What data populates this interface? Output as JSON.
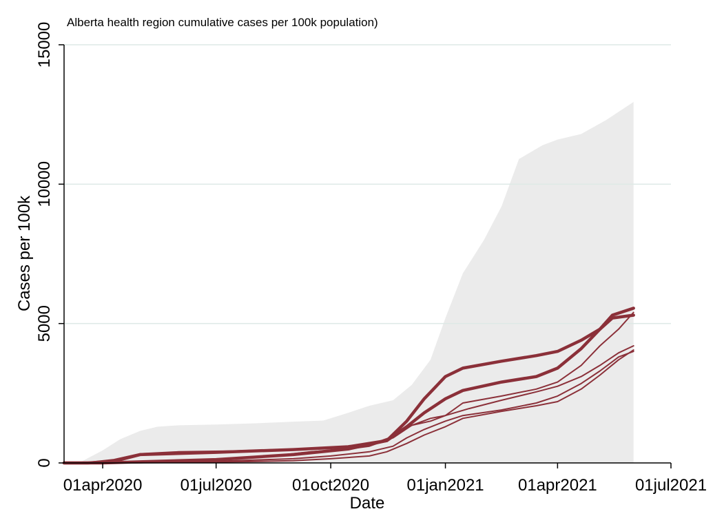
{
  "chart_data": {
    "type": "line",
    "title": "Alberta health region cumulative cases per 100k population)",
    "xlabel": "Date",
    "ylabel": "Cases per 100k",
    "x_ticks": [
      "01apr2020",
      "01jul2020",
      "01oct2020",
      "01jan2021",
      "01apr2021",
      "01jul2021"
    ],
    "y_ticks": [
      "0",
      "5000",
      "10000",
      "15000"
    ],
    "xlim": [
      "2020-03-01",
      "2021-07-01"
    ],
    "ylim": [
      0,
      15000
    ],
    "grid": "horizontal",
    "colors": {
      "series": "#8b3039",
      "background_bars": "#ebebeb",
      "grid": "#dde9e6"
    },
    "background_bars": {
      "x": [
        "2020-03-01",
        "2020-03-15",
        "2020-04-01",
        "2020-04-15",
        "2020-05-01",
        "2020-05-15",
        "2020-06-01",
        "2020-07-01",
        "2020-08-01",
        "2020-09-01",
        "2020-09-25",
        "2020-10-15",
        "2020-11-01",
        "2020-11-20",
        "2020-12-05",
        "2020-12-20",
        "2021-01-01",
        "2021-01-15",
        "2021-02-01",
        "2021-02-15",
        "2021-03-01",
        "2021-03-20",
        "2021-04-01",
        "2021-04-20",
        "2021-05-10",
        "2021-06-01"
      ],
      "values": [
        0,
        50,
        450,
        850,
        1150,
        1300,
        1350,
        1380,
        1420,
        1480,
        1520,
        1800,
        2050,
        2250,
        2800,
        3700,
        5200,
        6800,
        8000,
        9200,
        10900,
        11400,
        11600,
        11800,
        12300,
        12950
      ]
    },
    "series": [
      {
        "x": [
          "2020-03-01",
          "2020-03-20",
          "2020-04-10",
          "2020-05-01",
          "2020-07-01",
          "2020-09-01",
          "2020-10-15",
          "2020-11-15",
          "2020-12-01",
          "2020-12-15",
          "2021-01-01",
          "2021-01-15",
          "2021-02-15",
          "2021-03-15",
          "2021-04-01",
          "2021-04-20",
          "2021-05-05",
          "2021-05-15",
          "2021-06-01"
        ],
        "values": [
          0,
          0,
          60,
          300,
          380,
          480,
          580,
          800,
          1500,
          2300,
          3100,
          3400,
          3650,
          3850,
          4000,
          4400,
          4800,
          5200,
          5300
        ],
        "width": 4.5
      },
      {
        "x": [
          "2020-03-01",
          "2020-04-01",
          "2020-05-01",
          "2020-07-01",
          "2020-09-01",
          "2020-10-15",
          "2020-11-15",
          "2020-12-01",
          "2020-12-15",
          "2021-01-01",
          "2021-01-15",
          "2021-02-15",
          "2021-03-15",
          "2021-04-01",
          "2021-04-20",
          "2021-05-05",
          "2021-05-15",
          "2021-06-01"
        ],
        "values": [
          0,
          0,
          40,
          120,
          300,
          500,
          800,
          1300,
          1800,
          2300,
          2600,
          2900,
          3100,
          3400,
          4100,
          4800,
          5300,
          5550
        ],
        "width": 4.5
      },
      {
        "x": [
          "2020-03-01",
          "2020-03-20",
          "2020-04-10",
          "2020-05-01",
          "2020-06-01",
          "2020-07-15",
          "2020-09-01",
          "2020-10-01",
          "2020-11-01",
          "2020-11-20",
          "2020-12-05",
          "2020-12-20",
          "2021-01-01",
          "2021-01-20",
          "2021-02-15",
          "2021-03-15",
          "2021-04-01",
          "2021-04-20",
          "2021-05-05",
          "2021-05-20",
          "2021-06-01"
        ],
        "values": [
          0,
          20,
          120,
          330,
          400,
          430,
          500,
          550,
          650,
          950,
          1350,
          1600,
          1700,
          1950,
          2250,
          2550,
          2750,
          3100,
          3500,
          3950,
          4200
        ],
        "width": 2
      },
      {
        "x": [
          "2020-03-01",
          "2020-04-01",
          "2020-05-01",
          "2020-07-01",
          "2020-08-15",
          "2020-09-15",
          "2020-10-15",
          "2020-11-01",
          "2020-11-20",
          "2020-12-05",
          "2020-12-20",
          "2021-01-01",
          "2021-01-15",
          "2021-02-15",
          "2021-03-15",
          "2021-04-01",
          "2021-04-20",
          "2021-05-05",
          "2021-05-20",
          "2021-06-01"
        ],
        "values": [
          0,
          0,
          20,
          100,
          250,
          400,
          500,
          600,
          900,
          1350,
          1500,
          1700,
          2150,
          2400,
          2650,
          2900,
          3500,
          4200,
          4800,
          5400
        ],
        "width": 2
      },
      {
        "x": [
          "2020-03-01",
          "2020-04-01",
          "2020-05-01",
          "2020-07-01",
          "2020-09-01",
          "2020-10-01",
          "2020-11-01",
          "2020-11-20",
          "2020-12-01",
          "2020-12-15",
          "2021-01-01",
          "2021-01-15",
          "2021-02-15",
          "2021-03-15",
          "2021-04-01",
          "2021-04-20",
          "2021-05-05",
          "2021-05-20",
          "2021-06-01"
        ],
        "values": [
          0,
          0,
          10,
          60,
          150,
          250,
          400,
          600,
          900,
          1200,
          1500,
          1700,
          1900,
          2150,
          2400,
          2850,
          3300,
          3800,
          4000
        ],
        "width": 2
      },
      {
        "x": [
          "2020-03-01",
          "2020-04-01",
          "2020-05-01",
          "2020-07-01",
          "2020-09-01",
          "2020-10-01",
          "2020-11-01",
          "2020-11-15",
          "2020-12-01",
          "2020-12-15",
          "2021-01-01",
          "2021-01-15",
          "2021-02-15",
          "2021-03-15",
          "2021-04-01",
          "2021-04-20",
          "2021-05-05",
          "2021-05-20",
          "2021-06-01"
        ],
        "values": [
          0,
          0,
          5,
          30,
          80,
          150,
          250,
          400,
          700,
          1000,
          1300,
          1600,
          1850,
          2050,
          2200,
          2650,
          3150,
          3700,
          4050
        ],
        "width": 2
      }
    ]
  }
}
